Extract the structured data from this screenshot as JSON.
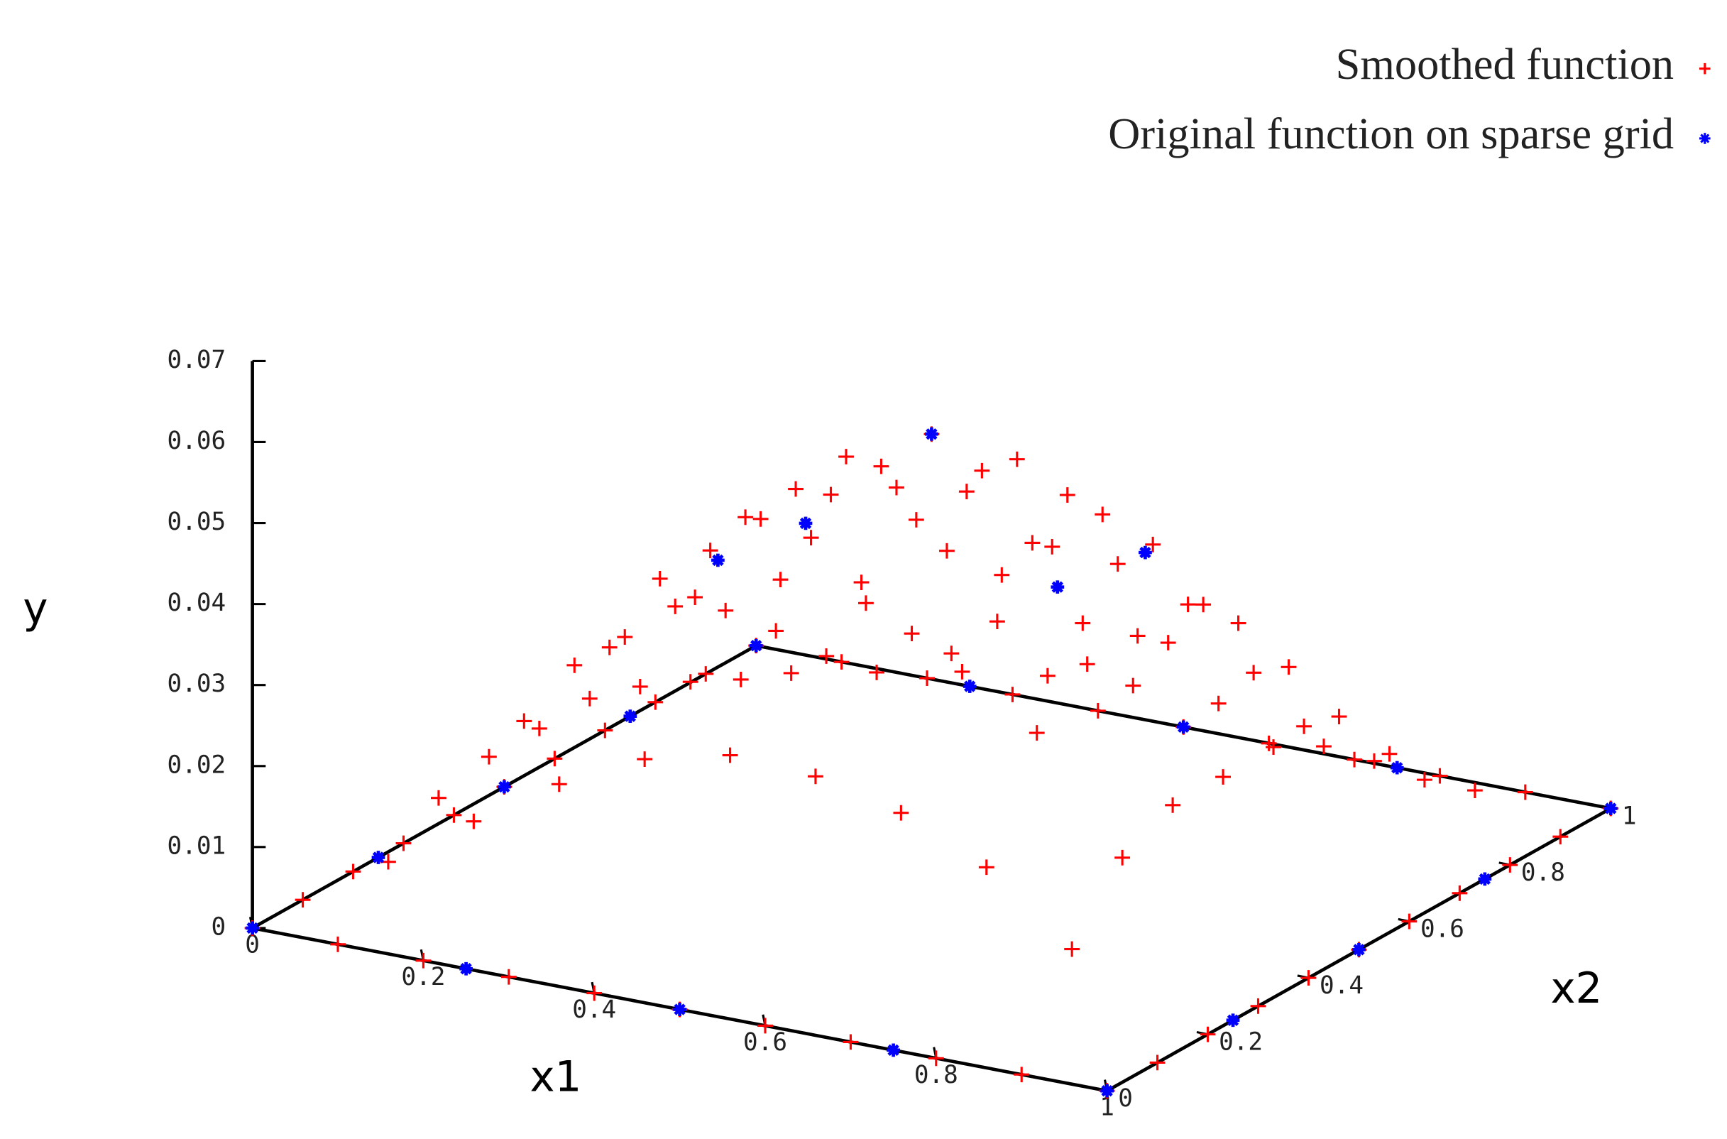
{
  "chart_data": {
    "type": "surface3d",
    "x1label": "x1",
    "x2label": "x2",
    "ylabel": "y",
    "x1lim": [
      0,
      1
    ],
    "x1ticks": [
      0,
      0.2,
      0.4,
      0.6,
      0.8,
      1
    ],
    "x2lim": [
      0,
      1
    ],
    "x2ticks": [
      0,
      0.2,
      0.4,
      0.6,
      0.8,
      1
    ],
    "ylim": [
      0,
      0.07
    ],
    "yticks": [
      0,
      0.01,
      0.02,
      0.03,
      0.04,
      0.05,
      0.06,
      0.07
    ],
    "series": [
      {
        "name": "Smoothed function",
        "color": "#ff0000",
        "marker": "plus",
        "x1": [
          0,
          0.1,
          0.2,
          0.3,
          0.4,
          0.5,
          0.6,
          0.7,
          0.8,
          0.9,
          1
        ],
        "x2": [
          0,
          0.1,
          0.2,
          0.3,
          0.4,
          0.5,
          0.6,
          0.7,
          0.8,
          0.9,
          1
        ],
        "values": [
          [
            0,
            0,
            0,
            0,
            0,
            0,
            0,
            0,
            0,
            0,
            0
          ],
          [
            0,
            0.0067,
            0.0111,
            0.0127,
            0.0127,
            0.0129,
            0.0109,
            0.008,
            0.0048,
            0.0021,
            0
          ],
          [
            0,
            0.0137,
            0.0226,
            0.026,
            0.026,
            0.0263,
            0.0223,
            0.0163,
            0.0097,
            0.0042,
            0
          ],
          [
            0,
            0.0203,
            0.0337,
            0.0387,
            0.0387,
            0.0391,
            0.0333,
            0.0243,
            0.0145,
            0.0063,
            0
          ],
          [
            0,
            0.0254,
            0.0419,
            0.0483,
            0.0483,
            0.0488,
            0.0415,
            0.0302,
            0.018,
            0.0078,
            0
          ],
          [
            0,
            0.0279,
            0.0461,
            0.0531,
            0.0531,
            0.0536,
            0.0456,
            0.0332,
            0.0198,
            0.0086,
            0
          ],
          [
            0,
            0.0273,
            0.0452,
            0.052,
            0.052,
            0.0525,
            0.0446,
            0.0326,
            0.0194,
            0.0084,
            0
          ],
          [
            0,
            0.0248,
            0.041,
            0.0472,
            0.0472,
            0.0477,
            0.0405,
            0.0296,
            0.0177,
            0.0076,
            0
          ],
          [
            0,
            0.0201,
            0.0332,
            0.0382,
            0.0382,
            0.0386,
            0.0328,
            0.0239,
            0.0143,
            0.0062,
            0
          ],
          [
            0,
            0.012,
            0.0198,
            0.0228,
            0.0228,
            0.023,
            0.0196,
            0.0143,
            0.0085,
            0.0037,
            0
          ],
          [
            0,
            0,
            0,
            0,
            0,
            0,
            0,
            0,
            0,
            0,
            0
          ]
        ]
      },
      {
        "name": "Original function on sparse grid",
        "color": "#0000ff",
        "marker": "star",
        "x1": [
          0,
          0.25,
          0.5,
          0.75,
          1,
          1,
          1,
          1,
          1,
          0,
          0,
          0,
          0,
          0.25,
          0.5,
          0.75,
          0.5,
          0.25,
          0.75,
          0.5,
          0.5
        ],
        "x2": [
          0,
          0,
          0,
          0,
          0,
          0.25,
          0.5,
          0.75,
          1,
          0.25,
          0.5,
          0.75,
          1,
          1,
          1,
          1,
          0.5,
          0.5,
          0.5,
          0.25,
          0.75
        ],
        "values": [
          0,
          0,
          0,
          0,
          0,
          0,
          0,
          0,
          0,
          0,
          0,
          0,
          0,
          0,
          0,
          0,
          0.0536,
          0.033,
          0.044,
          0.0513,
          0.026
        ]
      }
    ]
  }
}
